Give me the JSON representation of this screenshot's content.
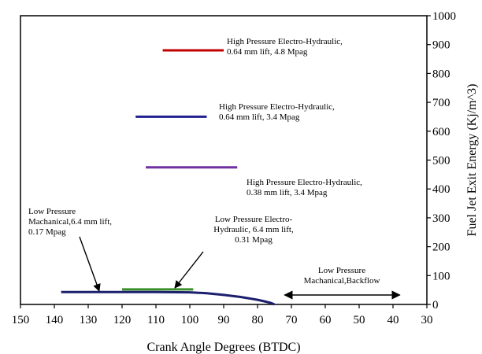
{
  "chart_data": {
    "type": "line",
    "title": "",
    "xlabel": "Crank Angle Degrees (BTDC)",
    "ylabel": "Fuel Jet Exit Energy (Kj/m^3)",
    "xlim": [
      150,
      30
    ],
    "ylim": [
      0,
      1000
    ],
    "x_ticks": [
      "150",
      "140",
      "130",
      "120",
      "110",
      "100",
      "90",
      "80",
      "70",
      "60",
      "50",
      "40",
      "30"
    ],
    "y_ticks": [
      "0",
      "100",
      "200",
      "300",
      "400",
      "500",
      "600",
      "700",
      "800",
      "900",
      "1000"
    ],
    "grid": false,
    "series": [
      {
        "name": "High Pressure Electro-Hydraulic, 0.64 mm lift, 4.8 Mpag",
        "color": "#c00000",
        "x": [
          108,
          90
        ],
        "y": [
          880,
          880
        ]
      },
      {
        "name": "High Pressure Electro-Hydraulic, 0.64 mm lift, 3.4 Mpag",
        "color": "#1f1f8f",
        "x": [
          116,
          95
        ],
        "y": [
          650,
          650
        ]
      },
      {
        "name": "High Pressure Electro-Hydraulic, 0.38 mm lift, 3.4 Mpag",
        "color": "#7030a0",
        "x": [
          113,
          86
        ],
        "y": [
          475,
          475
        ]
      },
      {
        "name": "Low Pressure Electro-Hydraulic, 6.4 mm lift, 0.31 Mpag",
        "color": "#3a8f2a",
        "x": [
          120,
          99
        ],
        "y": [
          52,
          52
        ]
      },
      {
        "name": "Low Pressure Machanical,6.4 mm lift, 0.17 Mpag",
        "color": "#1b1f6e",
        "x": [
          138,
          130,
          120,
          110,
          100,
          95,
          90,
          85,
          80,
          78,
          76,
          75
        ],
        "y": [
          43,
          43,
          43,
          43,
          42,
          39,
          33,
          26,
          16,
          11,
          5,
          0
        ]
      }
    ],
    "annotations": [
      {
        "id": "hp1",
        "lines": [
          "High Pressure Electro-Hydraulic,",
          "0.64 mm lift, 4.8 Mpag"
        ]
      },
      {
        "id": "hp2",
        "lines": [
          "High Pressure Electro-Hydraulic,",
          "0.64 mm lift, 3.4 Mpag"
        ]
      },
      {
        "id": "hp3",
        "lines": [
          "High Pressure Electro-Hydraulic,",
          "0.38 mm lift, 3.4 Mpag"
        ]
      },
      {
        "id": "lpmech",
        "lines": [
          "Low Pressure",
          "Machanical,6.4 mm lift,",
          "0.17 Mpag"
        ]
      },
      {
        "id": "lpeh",
        "lines": [
          "Low Pressure Electro-",
          "Hydraulic, 6.4 mm lift,",
          "0.31 Mpag"
        ]
      },
      {
        "id": "backflow",
        "lines": [
          "Low Pressure",
          "Machanical,Backflow"
        ],
        "x_range": [
          72,
          38
        ]
      }
    ]
  }
}
